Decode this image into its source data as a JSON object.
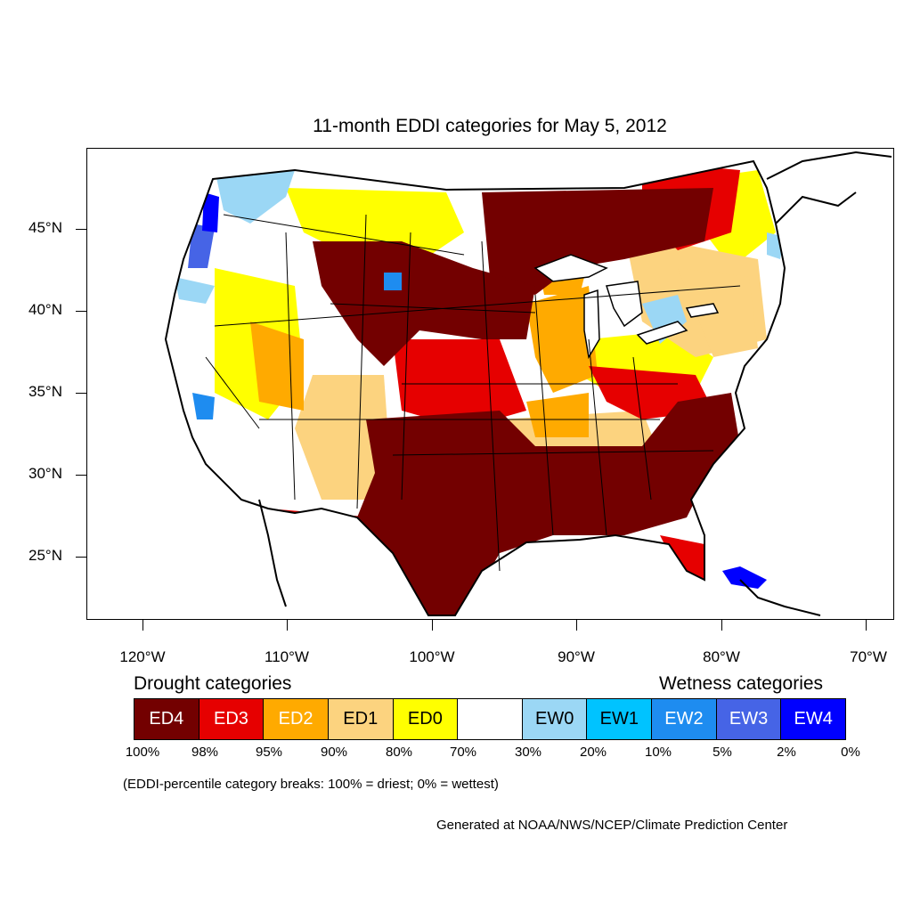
{
  "title": "11-month EDDI categories for May 5, 2012",
  "lat_labels": [
    "45°N",
    "40°N",
    "35°N",
    "30°N",
    "25°N"
  ],
  "lon_labels": [
    "120°W",
    "110°W",
    "100°W",
    "90°W",
    "80°W",
    "70°W"
  ],
  "drought_heading": "Drought categories",
  "wetness_heading": "Wetness categories",
  "legend": [
    {
      "label": "ED4",
      "color": "#730000",
      "text_color": "#ffffff"
    },
    {
      "label": "ED3",
      "color": "#e60000",
      "text_color": "#ffffff"
    },
    {
      "label": "ED2",
      "color": "#ffaa00",
      "text_color": "#ffffff"
    },
    {
      "label": "ED1",
      "color": "#fcd37f",
      "text_color": "#000000"
    },
    {
      "label": "ED0",
      "color": "#ffff00",
      "text_color": "#000000"
    },
    {
      "label": "",
      "color": "#ffffff",
      "text_color": "#000000"
    },
    {
      "label": "EW0",
      "color": "#9bd7f5",
      "text_color": "#000000"
    },
    {
      "label": "EW1",
      "color": "#00c3ff",
      "text_color": "#000000"
    },
    {
      "label": "EW2",
      "color": "#1e8cf0",
      "text_color": "#ffffff"
    },
    {
      "label": "EW3",
      "color": "#4664e6",
      "text_color": "#ffffff"
    },
    {
      "label": "EW4",
      "color": "#0000ff",
      "text_color": "#ffffff"
    }
  ],
  "breaks": [
    "100%",
    "98%",
    "95%",
    "90%",
    "80%",
    "70%",
    "30%",
    "20%",
    "10%",
    "5%",
    "2%",
    "0%"
  ],
  "note": "(EDDI-percentile category breaks: 100% = driest; 0% = wettest)",
  "credit": "Generated at NOAA/NWS/NCEP/Climate Prediction Center"
}
